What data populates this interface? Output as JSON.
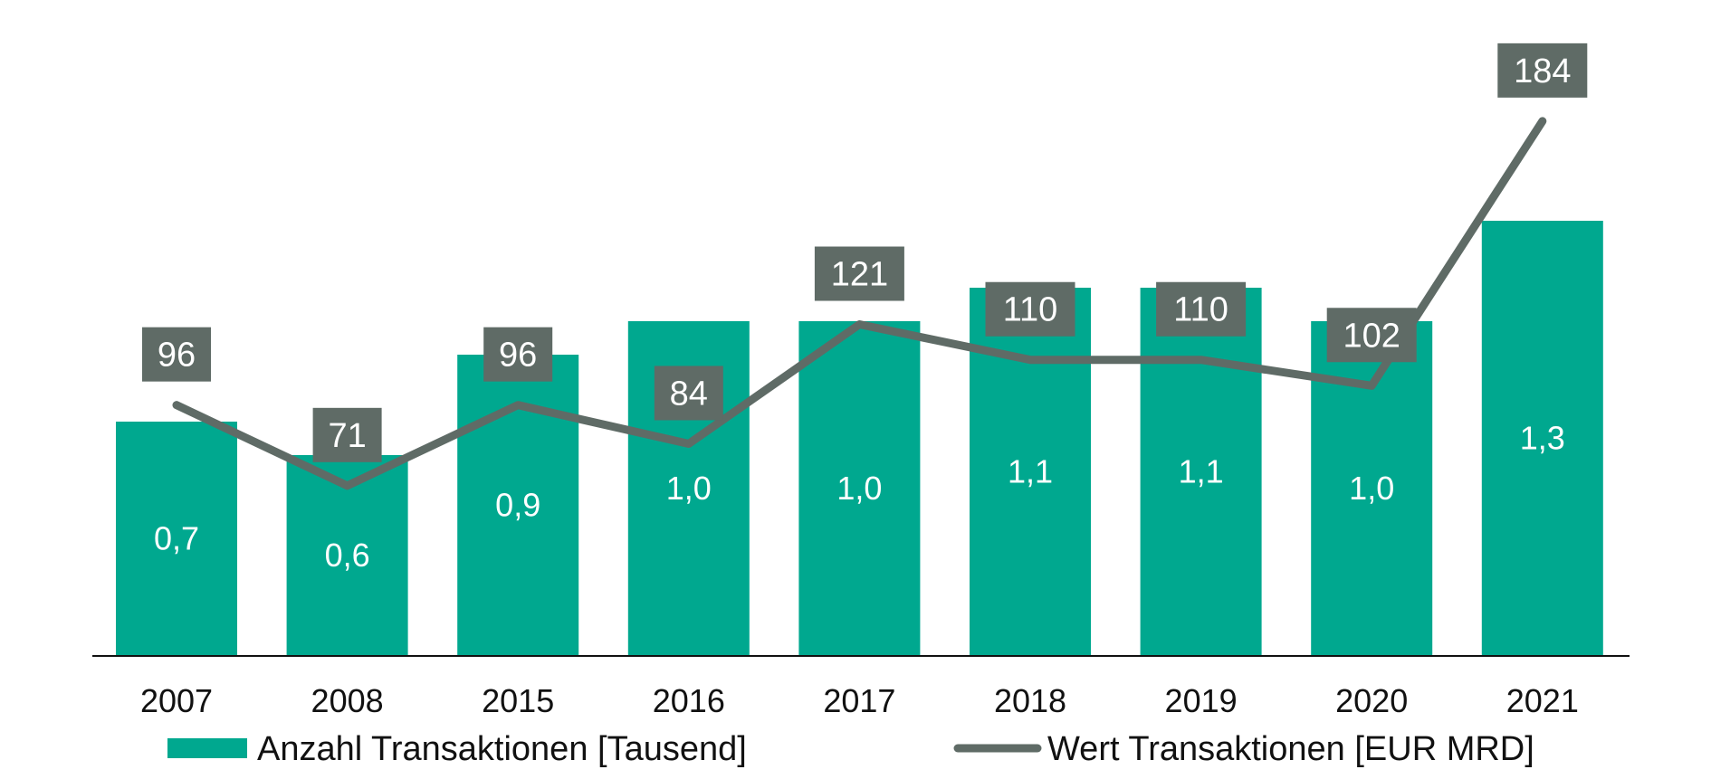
{
  "chart_data": {
    "type": "bar",
    "categories": [
      "2007",
      "2008",
      "2015",
      "2016",
      "2017",
      "2018",
      "2019",
      "2020",
      "2021"
    ],
    "series": [
      {
        "name": "Anzahl Transaktionen [Tausend]",
        "type": "bar",
        "values": [
          0.7,
          0.6,
          0.9,
          1.0,
          1.0,
          1.1,
          1.1,
          1.0,
          1.3
        ],
        "labels": [
          "0,7",
          "0,6",
          "0,9",
          "1,0",
          "1,0",
          "1,1",
          "1,1",
          "1,0",
          "1,3"
        ],
        "color": "#00a88f"
      },
      {
        "name": "Wert Transaktionen [EUR MRD]",
        "type": "line",
        "values": [
          96,
          71,
          96,
          84,
          121,
          110,
          110,
          102,
          184
        ],
        "labels": [
          "96",
          "71",
          "96",
          "84",
          "121",
          "110",
          "110",
          "102",
          "184"
        ],
        "color": "#5f6b66"
      }
    ],
    "legend": {
      "position": "bottom"
    },
    "grid": false
  },
  "legend": {
    "bar_label": "Anzahl Transaktionen [Tausend]",
    "line_label": "Wert Transaktionen [EUR MRD]"
  }
}
